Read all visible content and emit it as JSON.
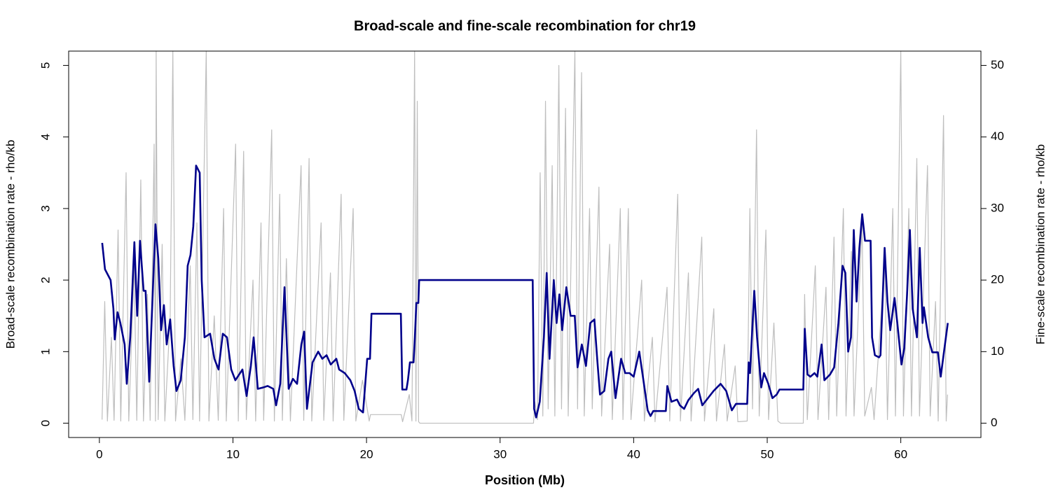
{
  "chart_data": {
    "type": "line",
    "title": "Broad-scale and fine-scale recombination for chr19",
    "x_label": "Position (Mb)",
    "y_label": "Broad-scale recombination rate - rho/kb",
    "y2_label": "Fine-scale recombination rate - rho/kb",
    "xlim": [
      -2.3,
      66.0
    ],
    "xticks": [
      0,
      10,
      20,
      30,
      40,
      50,
      60
    ],
    "ylim": [
      -0.2,
      5.2
    ],
    "yticks": [
      0,
      1,
      2,
      3,
      4,
      5
    ],
    "y2lim": [
      -2,
      52
    ],
    "y2ticks": [
      0,
      10,
      20,
      30,
      40,
      50
    ],
    "series": [
      {
        "name": "Fine-scale",
        "color": "#bebebe",
        "axis": "y2",
        "x": [
          0.2,
          0.4,
          0.6,
          0.9,
          1.1,
          1.4,
          1.6,
          2.0,
          2.2,
          2.6,
          2.8,
          3.1,
          3.3,
          3.6,
          3.8,
          4.1,
          4.2,
          4.25,
          4.4,
          4.7,
          4.9,
          5.3,
          5.5,
          5.7,
          6.1,
          6.4,
          6.8,
          7.0,
          7.3,
          7.5,
          8.0,
          8.2,
          8.6,
          8.9,
          9.3,
          9.5,
          10.2,
          10.4,
          10.8,
          11.0,
          11.5,
          11.7,
          12.1,
          12.3,
          12.9,
          13.1,
          13.5,
          13.7,
          14.0,
          14.3,
          15.1,
          15.3,
          15.7,
          15.9,
          16.6,
          16.8,
          17.3,
          17.5,
          18.1,
          18.3,
          19.0,
          19.2,
          19.7,
          20.2,
          20.3,
          22.6,
          22.7,
          23.2,
          23.4,
          23.6,
          23.7,
          23.8,
          23.9,
          24.0,
          32.5,
          32.6,
          32.8,
          33.0,
          33.2,
          33.4,
          33.6,
          33.9,
          34.1,
          34.4,
          34.6,
          34.9,
          35.1,
          35.6,
          35.8,
          36.1,
          36.3,
          36.7,
          36.9,
          37.4,
          37.6,
          38.2,
          38.4,
          39.0,
          39.2,
          39.6,
          39.8,
          40.6,
          40.8,
          41.4,
          41.6,
          42.5,
          42.7,
          43.3,
          43.5,
          44.1,
          44.3,
          45.1,
          45.3,
          46.0,
          46.2,
          46.8,
          47.0,
          47.6,
          47.8,
          48.5,
          48.7,
          48.9,
          49.2,
          49.4,
          49.9,
          50.1,
          50.5,
          50.8,
          51.0,
          52.7,
          52.8,
          53.0,
          53.6,
          53.8,
          54.4,
          54.6,
          55.0,
          55.2,
          55.7,
          55.9,
          56.3,
          56.5,
          57.1,
          57.3,
          57.8,
          58.0,
          58.8,
          59.0,
          59.4,
          59.6,
          60.0,
          60.2,
          60.6,
          60.8,
          61.2,
          61.4,
          62.0,
          62.2,
          62.6,
          62.8,
          63.2,
          63.4,
          63.5
        ],
        "values": [
          0.5,
          17,
          0.3,
          12,
          0.4,
          27,
          0.3,
          35,
          0.3,
          22,
          0.4,
          34,
          0.3,
          18,
          0.4,
          39,
          0.3,
          52,
          0.5,
          25,
          0.3,
          15,
          52,
          0.3,
          9,
          0.4,
          22,
          0.5,
          28,
          0.3,
          52,
          0.3,
          15,
          0.4,
          30,
          0.3,
          39,
          0.3,
          38,
          0.5,
          20,
          0.3,
          28,
          0.4,
          41,
          0.3,
          32,
          0.4,
          23,
          0.3,
          36,
          0.4,
          37,
          0.3,
          28,
          0.4,
          21,
          0.3,
          32,
          0.4,
          30,
          0.3,
          6,
          0.3,
          1.2,
          1.2,
          0.2,
          4,
          0.3,
          52,
          0.3,
          45,
          0.2,
          0,
          0,
          3,
          0.5,
          35,
          1,
          45,
          2,
          36,
          1,
          50,
          2,
          44,
          1,
          52,
          2,
          49,
          1,
          30,
          2,
          33,
          1,
          25,
          0.5,
          30,
          0.5,
          30,
          0.5,
          20,
          0.3,
          12,
          0.2,
          19,
          0.3,
          32,
          0.3,
          21,
          0.3,
          26,
          0.3,
          16,
          0.3,
          11,
          0.3,
          8,
          0.2,
          0.3,
          30,
          2,
          41,
          1,
          27,
          0.5,
          14,
          0.3,
          0,
          0,
          18,
          0.5,
          22,
          0.5,
          19,
          0.5,
          26,
          1,
          30,
          1,
          24,
          1,
          28,
          1,
          5,
          0.5,
          23,
          0.5,
          30,
          1,
          52,
          1,
          30,
          1,
          37,
          1,
          36,
          1,
          17,
          0.3,
          43,
          0.3,
          4
        ]
      },
      {
        "name": "Broad-scale",
        "color": "#00008b",
        "x": [
          0.21,
          0.42,
          0.84,
          1.05,
          1.15,
          1.36,
          1.57,
          1.89,
          2.05,
          2.31,
          2.62,
          2.83,
          3.04,
          3.31,
          3.46,
          3.73,
          3.99,
          4.2,
          4.41,
          4.62,
          4.83,
          5.04,
          5.3,
          5.56,
          5.77,
          6.09,
          6.4,
          6.61,
          6.82,
          7.03,
          7.24,
          7.51,
          7.66,
          7.87,
          8.29,
          8.61,
          8.92,
          9.24,
          9.55,
          9.87,
          10.18,
          10.71,
          11.02,
          11.34,
          11.55,
          11.86,
          12.28,
          12.6,
          13.02,
          13.23,
          13.54,
          13.86,
          14.17,
          14.49,
          14.8,
          15.12,
          15.33,
          15.54,
          15.96,
          16.38,
          16.69,
          17.01,
          17.32,
          17.74,
          17.95,
          18.37,
          18.79,
          19.11,
          19.42,
          19.74,
          20.05,
          20.26,
          20.37,
          22.57,
          22.68,
          22.99,
          23.1,
          23.25,
          23.52,
          23.62,
          23.73,
          23.88,
          23.94,
          32.44,
          32.55,
          32.7,
          32.97,
          33.28,
          33.49,
          33.7,
          34.02,
          34.23,
          34.44,
          34.65,
          34.96,
          35.28,
          35.59,
          35.8,
          36.12,
          36.43,
          36.75,
          37.06,
          37.27,
          37.48,
          37.8,
          38.11,
          38.32,
          38.64,
          39.06,
          39.37,
          39.69,
          40.0,
          40.42,
          40.73,
          41.05,
          41.26,
          41.47,
          42.41,
          42.52,
          42.83,
          43.25,
          43.46,
          43.78,
          44.09,
          44.51,
          44.83,
          45.14,
          45.56,
          45.98,
          46.51,
          46.93,
          47.35,
          47.66,
          48.5,
          48.61,
          48.71,
          49.03,
          49.24,
          49.55,
          49.76,
          50.08,
          50.39,
          50.71,
          50.92,
          52.7,
          52.81,
          53.02,
          53.23,
          53.54,
          53.75,
          54.07,
          54.28,
          54.7,
          55.01,
          55.33,
          55.64,
          55.85,
          56.06,
          56.27,
          56.48,
          56.69,
          56.9,
          57.11,
          57.32,
          57.74,
          57.85,
          58.06,
          58.37,
          58.48,
          58.79,
          59.0,
          59.21,
          59.53,
          59.74,
          60.05,
          60.26,
          60.47,
          60.68,
          60.89,
          61.21,
          61.42,
          61.63,
          61.73,
          62.05,
          62.36,
          62.78,
          62.99,
          63.2,
          63.52
        ],
        "values": [
          2.52,
          2.15,
          2.0,
          1.6,
          1.17,
          1.55,
          1.4,
          1.1,
          0.55,
          1.2,
          2.53,
          1.5,
          2.55,
          1.85,
          1.85,
          0.58,
          1.8,
          2.78,
          2.3,
          1.3,
          1.65,
          1.1,
          1.45,
          0.8,
          0.45,
          0.6,
          1.2,
          2.2,
          2.35,
          2.75,
          3.6,
          3.5,
          2.0,
          1.2,
          1.25,
          0.9,
          0.75,
          1.25,
          1.2,
          0.75,
          0.6,
          0.75,
          0.38,
          0.8,
          1.2,
          0.48,
          0.5,
          0.52,
          0.48,
          0.25,
          0.55,
          1.9,
          0.48,
          0.62,
          0.55,
          1.1,
          1.28,
          0.2,
          0.85,
          1.0,
          0.9,
          0.95,
          0.82,
          0.9,
          0.75,
          0.7,
          0.6,
          0.45,
          0.2,
          0.15,
          0.9,
          0.9,
          1.53,
          1.53,
          0.47,
          0.47,
          0.6,
          0.85,
          0.85,
          1.2,
          1.68,
          1.68,
          2.0,
          2.0,
          0.2,
          0.08,
          0.3,
          1.2,
          2.1,
          0.9,
          2.0,
          1.4,
          1.8,
          1.3,
          1.9,
          1.5,
          1.5,
          0.78,
          1.1,
          0.8,
          1.4,
          1.45,
          0.9,
          0.4,
          0.45,
          0.9,
          1.0,
          0.35,
          0.9,
          0.7,
          0.7,
          0.65,
          1.0,
          0.6,
          0.18,
          0.1,
          0.17,
          0.17,
          0.52,
          0.3,
          0.33,
          0.25,
          0.2,
          0.32,
          0.42,
          0.48,
          0.25,
          0.35,
          0.45,
          0.55,
          0.45,
          0.18,
          0.27,
          0.27,
          0.85,
          0.7,
          1.85,
          1.2,
          0.5,
          0.7,
          0.55,
          0.35,
          0.4,
          0.47,
          0.47,
          1.32,
          0.68,
          0.65,
          0.7,
          0.65,
          1.1,
          0.6,
          0.68,
          0.78,
          1.4,
          2.2,
          2.1,
          1.0,
          1.2,
          2.7,
          1.7,
          2.45,
          2.92,
          2.55,
          2.55,
          1.2,
          0.95,
          0.92,
          0.95,
          2.45,
          1.7,
          1.3,
          1.75,
          1.4,
          0.82,
          1.05,
          1.8,
          2.7,
          1.6,
          1.2,
          2.45,
          1.4,
          1.62,
          1.2,
          0.99,
          0.99,
          0.65,
          0.95,
          1.4
        ]
      }
    ]
  }
}
